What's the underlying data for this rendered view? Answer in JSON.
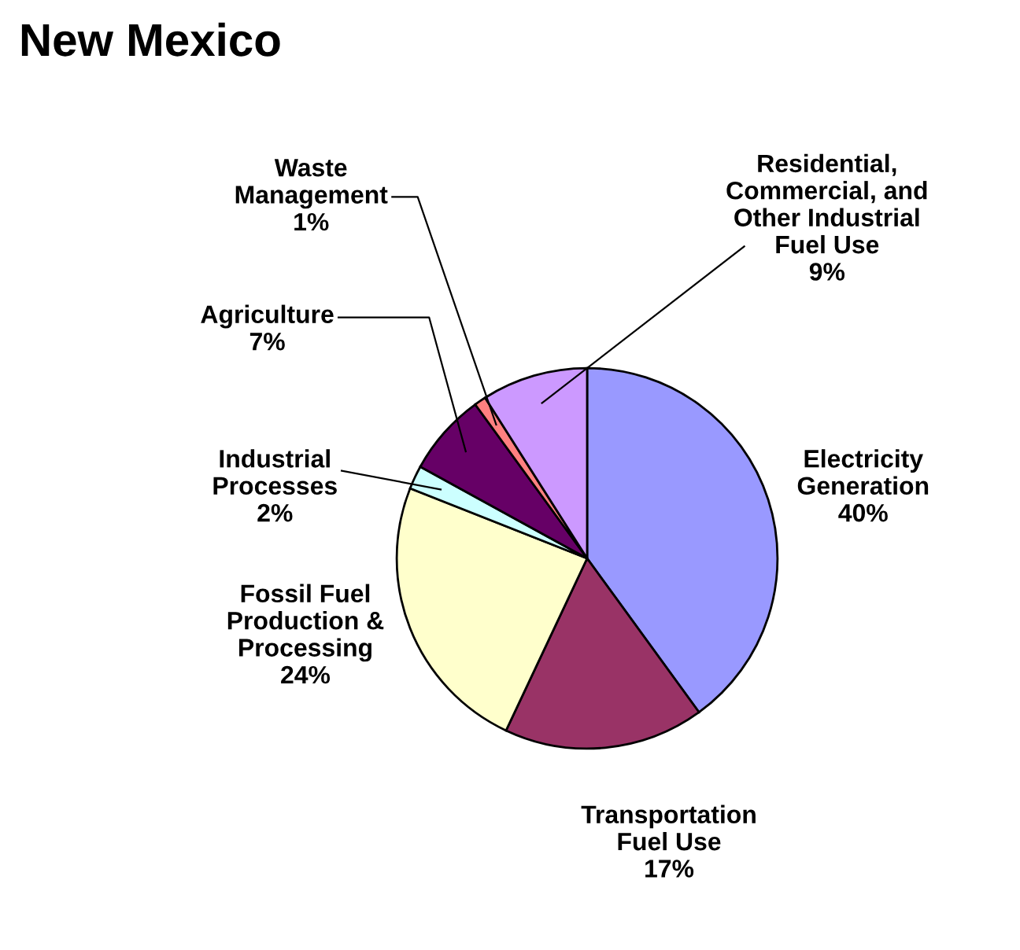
{
  "chart_data": {
    "type": "pie",
    "title": "New Mexico",
    "categories": [
      "Electricity\nGeneration",
      "Transportation\nFuel Use",
      "Fossil Fuel\nProduction &\nProcessing",
      "Industrial\nProcesses",
      "Agriculture",
      "Waste\nManagement",
      "Residential,\nCommercial, and\nOther Industrial\nFuel Use"
    ],
    "values": [
      40,
      17,
      24,
      2,
      7,
      1,
      9
    ],
    "colors": [
      "#9999ff",
      "#993366",
      "#ffffcc",
      "#ccffff",
      "#660066",
      "#ff8080",
      "#cc99ff"
    ],
    "value_labels": [
      "40%",
      "17%",
      "24%",
      "2%",
      "7%",
      "1%",
      "9%"
    ]
  }
}
